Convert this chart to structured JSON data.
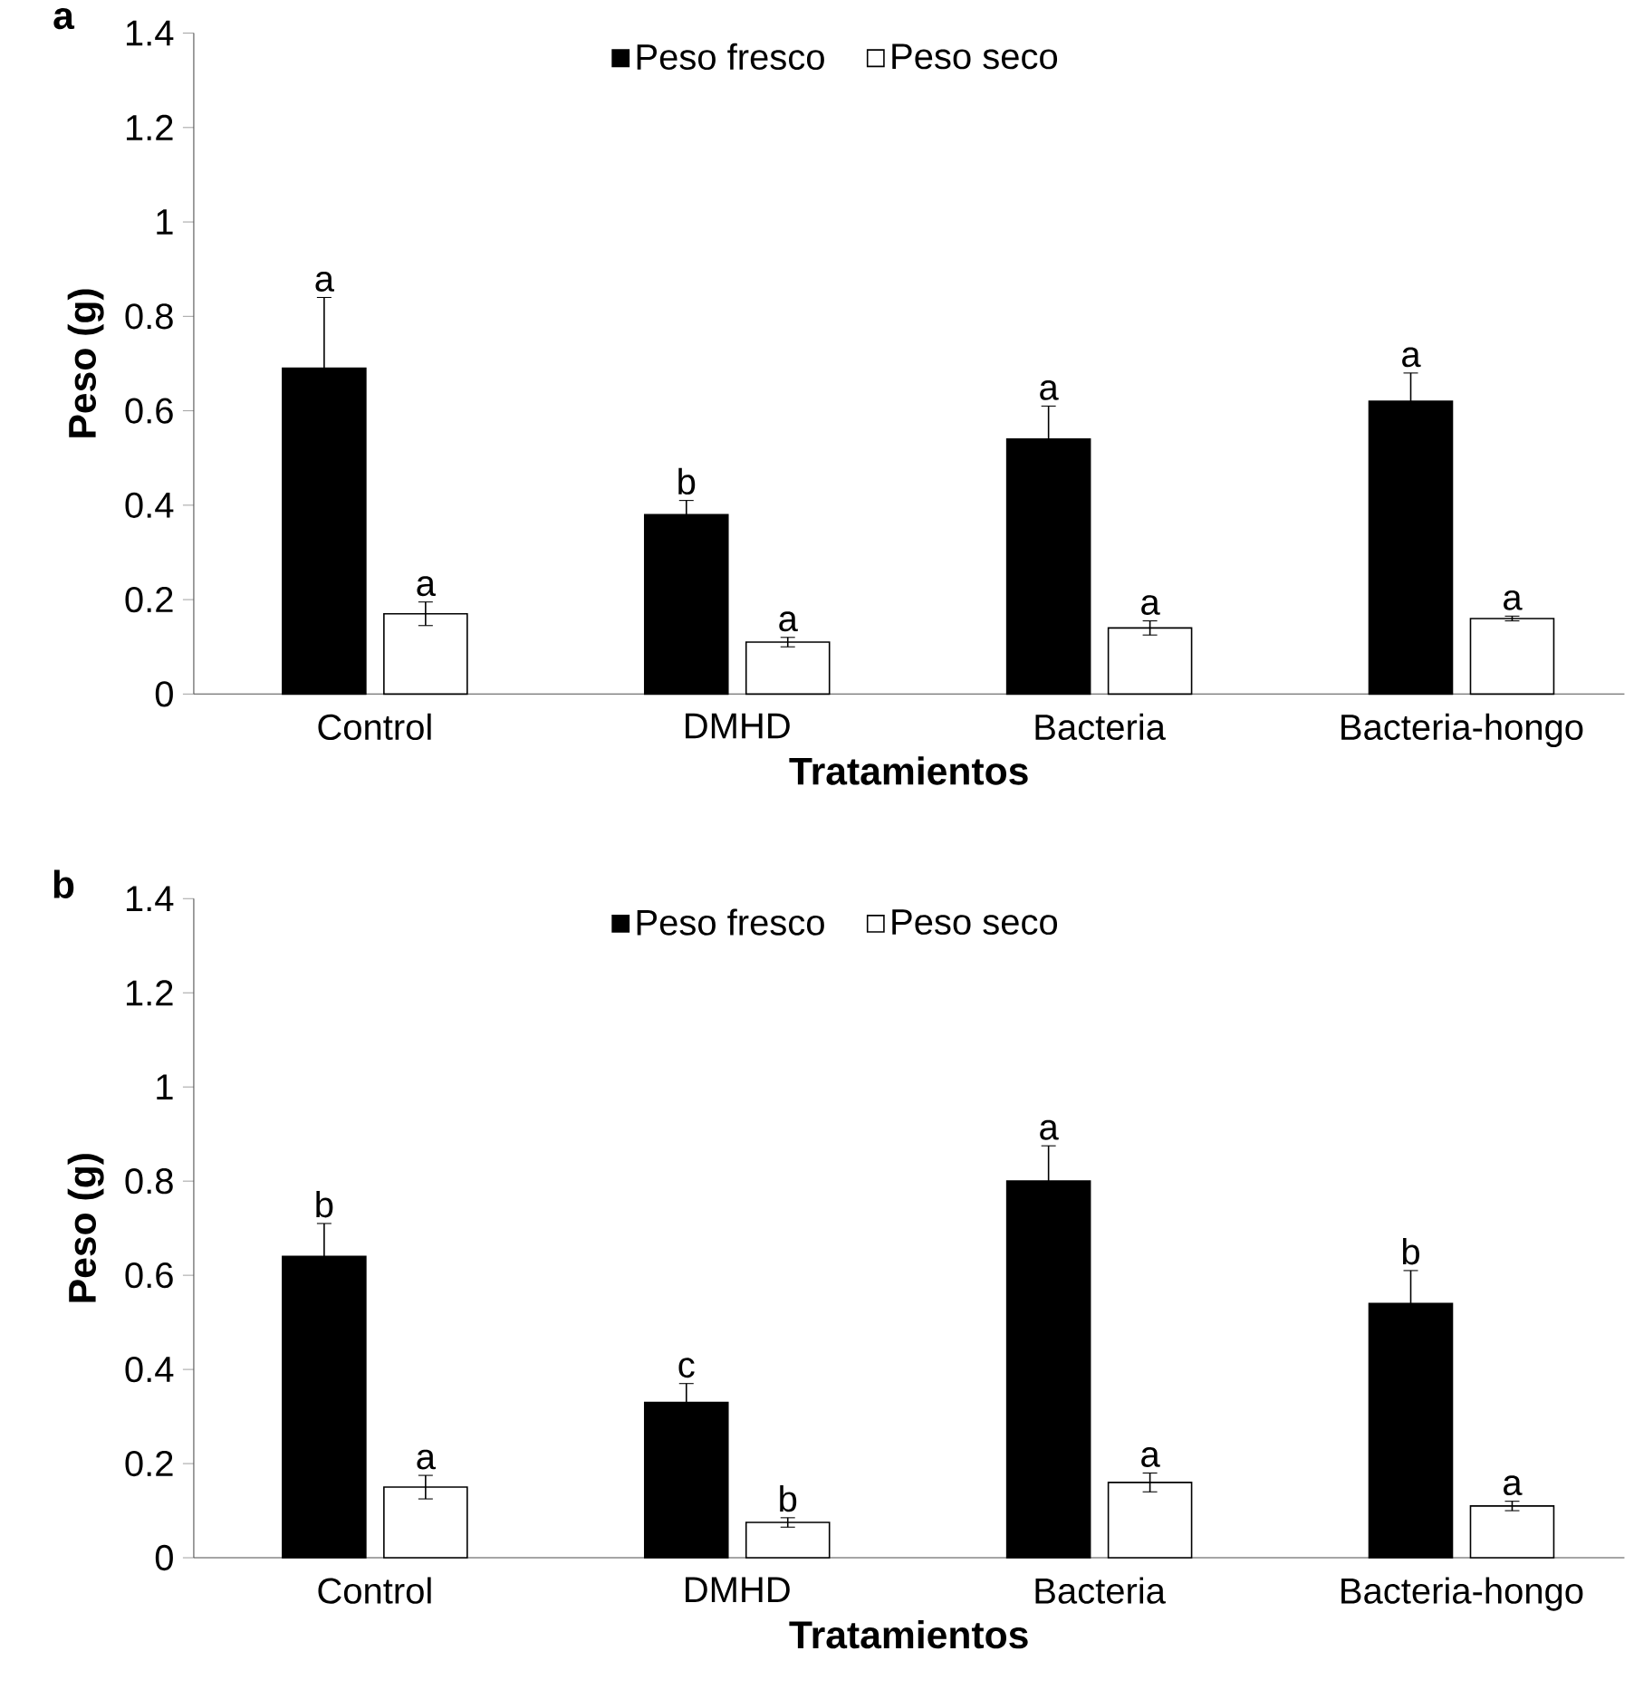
{
  "chart_data": [
    {
      "type": "bar",
      "title": "a",
      "xlabel": "Tratamientos",
      "ylabel": "Peso (g)",
      "categories": [
        "Control",
        "DMHD",
        "Bacteria",
        "Bacteria-hongo"
      ],
      "series": [
        {
          "name": "Peso fresco",
          "color": "#000000",
          "values": [
            0.69,
            0.38,
            0.54,
            0.62
          ],
          "errors": [
            0.15,
            0.03,
            0.07,
            0.06
          ]
        },
        {
          "name": "Peso seco",
          "color": "#ffffff",
          "values": [
            0.17,
            0.11,
            0.14,
            0.16
          ],
          "errors": [
            0.025,
            0.01,
            0.015,
            0.005
          ]
        }
      ],
      "ylim": [
        0,
        1.4
      ],
      "yticks": [
        0,
        0.2,
        0.4,
        0.6,
        0.8,
        1,
        1.2,
        1.4
      ],
      "legend": "top",
      "grid": false,
      "annotations": [
        "a",
        "a",
        "b",
        "a",
        "a",
        "a",
        "a",
        "a"
      ]
    },
    {
      "type": "bar",
      "title": "b",
      "xlabel": "Tratamientos",
      "ylabel": "Peso (g)",
      "categories": [
        "Control",
        "DMHD",
        "Bacteria",
        "Bacteria-hongo"
      ],
      "series": [
        {
          "name": "Peso fresco",
          "color": "#000000",
          "values": [
            0.64,
            0.33,
            0.8,
            0.54
          ],
          "errors": [
            0.07,
            0.04,
            0.075,
            0.07
          ]
        },
        {
          "name": "Peso seco",
          "color": "#ffffff",
          "values": [
            0.15,
            0.075,
            0.16,
            0.11
          ],
          "errors": [
            0.025,
            0.01,
            0.02,
            0.01
          ]
        }
      ],
      "ylim": [
        0,
        1.4
      ],
      "yticks": [
        0,
        0.2,
        0.4,
        0.6,
        0.8,
        1,
        1.2,
        1.4
      ],
      "legend": "top",
      "grid": false,
      "annotations": [
        "b",
        "a",
        "c",
        "b",
        "a",
        "a",
        "b",
        "a"
      ]
    }
  ]
}
